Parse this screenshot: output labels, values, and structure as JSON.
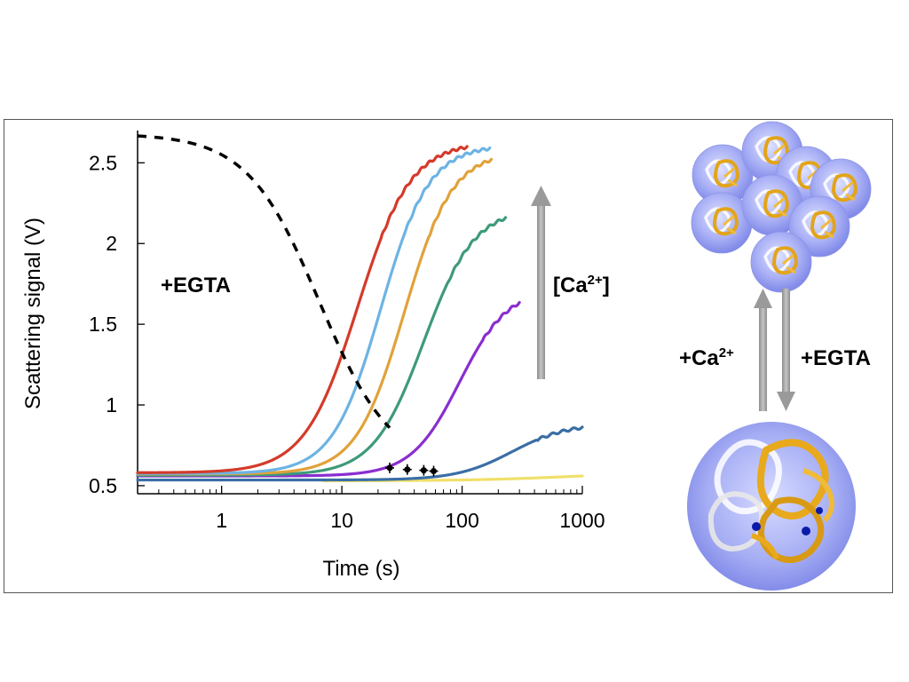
{
  "chart_data": {
    "type": "line",
    "xlabel": "Time (s)",
    "ylabel": "Scattering signal (V)",
    "xscale": "log",
    "xlim": [
      0.2,
      1000
    ],
    "ylim": [
      0.45,
      2.7
    ],
    "xticks": [
      {
        "value": 1,
        "label": "1"
      },
      {
        "value": 10,
        "label": "10"
      },
      {
        "value": 100,
        "label": "100"
      },
      {
        "value": 1000,
        "label": "1000"
      }
    ],
    "yticks": [
      {
        "value": 0.5,
        "label": "0.5"
      },
      {
        "value": 1,
        "label": "1"
      },
      {
        "value": 1.5,
        "label": "1.5"
      },
      {
        "value": 2,
        "label": "2"
      },
      {
        "value": 2.5,
        "label": "2.5"
      }
    ],
    "grid": false,
    "series": [
      {
        "color": "#d43a2a",
        "baseline": 0.58,
        "plateau": 2.63,
        "t_half": 13.5,
        "width": 0.22,
        "x_start": 0.2,
        "x_end": 110
      },
      {
        "color": "#6db3e3",
        "baseline": 0.575,
        "plateau": 2.61,
        "t_half": 21,
        "width": 0.2,
        "x_start": 0.2,
        "x_end": 170
      },
      {
        "color": "#e0a23b",
        "baseline": 0.572,
        "plateau": 2.57,
        "t_half": 33,
        "width": 0.2,
        "x_start": 0.2,
        "x_end": 175
      },
      {
        "color": "#3e9a78",
        "baseline": 0.565,
        "plateau": 2.22,
        "t_half": 48,
        "width": 0.21,
        "x_start": 0.2,
        "x_end": 230
      },
      {
        "color": "#8a2ecf",
        "baseline": 0.56,
        "plateau": 1.72,
        "t_half": 95,
        "width": 0.2,
        "x_start": 0.2,
        "x_end": 300
      },
      {
        "color": "#3a6ea5",
        "baseline": 0.535,
        "plateau": 0.885,
        "t_half": 260,
        "width": 0.23,
        "x_start": 0.2,
        "x_end": 1000
      },
      {
        "color": "#f0e06a",
        "baseline": 0.53,
        "plateau": 0.58,
        "t_half": 700,
        "width": 0.4,
        "x_start": 7,
        "x_end": 1000
      }
    ],
    "dashed_curve": {
      "color": "#000000",
      "top": 2.68,
      "bottom": 0.6,
      "t_half": 6.5,
      "width": 0.3,
      "x_start": 0.2,
      "x_end": 25
    },
    "error_points": [
      {
        "x": 25,
        "y": 0.61
      },
      {
        "x": 35,
        "y": 0.6
      },
      {
        "x": 48,
        "y": 0.595
      },
      {
        "x": 58,
        "y": 0.59
      }
    ],
    "annotations": {
      "egta_left": "+EGTA",
      "ca_label_main": "[Ca",
      "ca_label_sup": "2+",
      "ca_label_end": "]",
      "ca_plus_main": "+Ca",
      "ca_plus_sup": "2+",
      "egta_right": "+EGTA"
    }
  }
}
